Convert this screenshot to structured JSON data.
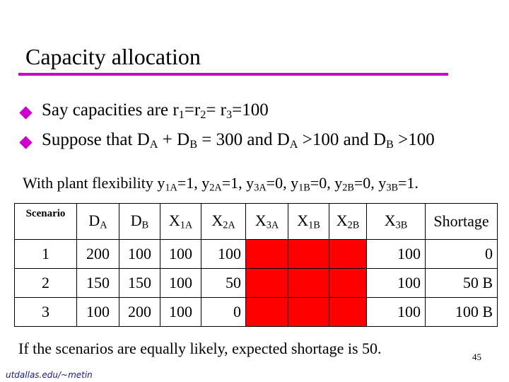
{
  "title": "Capacity allocation",
  "accent_color": "#cc00cc",
  "highlight_color": "#ff0000",
  "bullets": [
    {
      "a": "Say capacities are r",
      "a_sub": "1",
      "b": "=r",
      "b_sub": "2",
      "c": "= r",
      "c_sub": "3",
      "d": "=100"
    },
    {
      "a": "Suppose that D",
      "a_sub": "A",
      "b": " + D",
      "b_sub": "B",
      "c": " = 300 and D",
      "c_sub": "A",
      "d": " >100 and D",
      "d_sub": "B",
      "e": " >100"
    }
  ],
  "flexibility": {
    "prefix": "With plant flexibility y",
    "items": [
      {
        "sub": "1A",
        "text": "=1, y"
      },
      {
        "sub": "2A",
        "text": "=1, y"
      },
      {
        "sub": "3A",
        "text": "=0, y"
      },
      {
        "sub": "1B",
        "text": "=0, y"
      },
      {
        "sub": "2B",
        "text": "=0, y"
      },
      {
        "sub": "3B",
        "text": "=1."
      }
    ]
  },
  "table": {
    "headers": [
      {
        "main": "Scenario",
        "sub": ""
      },
      {
        "main": "D",
        "sub": "A"
      },
      {
        "main": "D",
        "sub": "B"
      },
      {
        "main": "X",
        "sub": "1A"
      },
      {
        "main": "X",
        "sub": "2A"
      },
      {
        "main": "X",
        "sub": "3A"
      },
      {
        "main": "X",
        "sub": "1B"
      },
      {
        "main": "X",
        "sub": "2B"
      },
      {
        "main": "X",
        "sub": "3B"
      },
      {
        "main": "Shortage",
        "sub": ""
      }
    ],
    "rows": [
      {
        "scenario": "1",
        "da": "200",
        "db": "100",
        "x1a": "100",
        "x2a": "100",
        "x3a": "",
        "x1b": "",
        "x2b": "",
        "x3b": "100",
        "shortage": "0"
      },
      {
        "scenario": "2",
        "da": "150",
        "db": "150",
        "x1a": "100",
        "x2a": "50",
        "x3a": "",
        "x1b": "",
        "x2b": "",
        "x3b": "100",
        "shortage": "50  B"
      },
      {
        "scenario": "3",
        "da": "100",
        "db": "200",
        "x1a": "100",
        "x2a": "0",
        "x3a": "",
        "x1b": "",
        "x2b": "",
        "x3b": "100",
        "shortage": "100  B"
      }
    ]
  },
  "footer_text": "If the scenarios are equally likely, expected shortage is 50.",
  "credit": "utdallas.edu/~metin",
  "page_number": "45"
}
